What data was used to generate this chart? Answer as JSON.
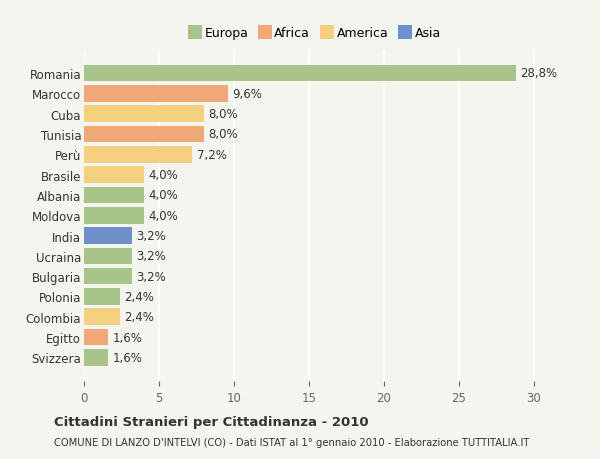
{
  "countries": [
    "Romania",
    "Marocco",
    "Cuba",
    "Tunisia",
    "Perù",
    "Brasile",
    "Albania",
    "Moldova",
    "India",
    "Ucraina",
    "Bulgaria",
    "Polonia",
    "Colombia",
    "Egitto",
    "Svizzera"
  ],
  "values": [
    28.8,
    9.6,
    8.0,
    8.0,
    7.2,
    4.0,
    4.0,
    4.0,
    3.2,
    3.2,
    3.2,
    2.4,
    2.4,
    1.6,
    1.6
  ],
  "labels": [
    "28,8%",
    "9,6%",
    "8,0%",
    "8,0%",
    "7,2%",
    "4,0%",
    "4,0%",
    "4,0%",
    "3,2%",
    "3,2%",
    "3,2%",
    "2,4%",
    "2,4%",
    "1,6%",
    "1,6%"
  ],
  "continent": [
    "Europa",
    "Africa",
    "America",
    "Africa",
    "America",
    "America",
    "Europa",
    "Europa",
    "Asia",
    "Europa",
    "Europa",
    "Europa",
    "America",
    "Africa",
    "Europa"
  ],
  "colors": {
    "Europa": "#a8c48a",
    "Africa": "#f0a878",
    "America": "#f5d080",
    "Asia": "#7090c8"
  },
  "legend_order": [
    "Europa",
    "Africa",
    "America",
    "Asia"
  ],
  "title": "Cittadini Stranieri per Cittadinanza - 2010",
  "subtitle": "COMUNE DI LANZO D'INTELVI (CO) - Dati ISTAT al 1° gennaio 2010 - Elaborazione TUTTITALIA.IT",
  "xlim": [
    0,
    32
  ],
  "xticks": [
    0,
    5,
    10,
    15,
    20,
    25,
    30
  ],
  "bar_height": 0.82,
  "background_color": "#f5f5f0",
  "grid_color": "#ffffff",
  "axis_label_color": "#666666",
  "text_color": "#333333",
  "label_fontsize": 8.5,
  "ytick_fontsize": 8.5,
  "xtick_fontsize": 8.5
}
